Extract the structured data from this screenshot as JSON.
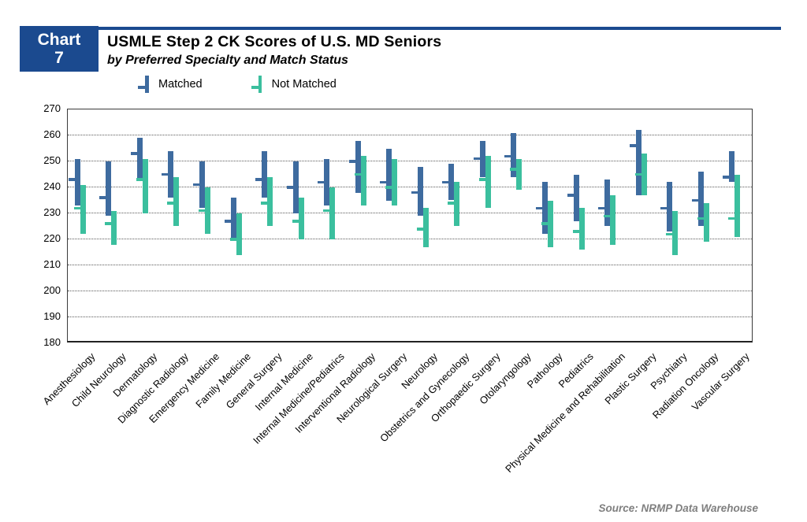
{
  "header": {
    "badge_line1": "Chart",
    "badge_line2": "7",
    "title": "USMLE Step 2 CK Scores of U.S. MD Seniors",
    "subtitle": "by Preferred Specialty and Match Status",
    "badge_color": "#1B4A8F"
  },
  "legend": {
    "matched_label": "Matched",
    "not_matched_label": "Not Matched"
  },
  "source": "Source: NRMP Data Warehouse",
  "colors": {
    "matched": "#3E6B9F",
    "not_matched": "#3BBF9E",
    "rule": "#1B4A8F",
    "grid": "#5a5a5a"
  },
  "chart_data": {
    "type": "range-bar",
    "description": "For each preferred specialty, vertical bars span the central score range (low-high) with a horizontal hash at the mean; one bar for Matched (blue) and one for Not Matched (green).",
    "ylim": [
      180,
      270
    ],
    "ytick_step": 10,
    "grid": "dotted horizontal",
    "legend_position": "top",
    "series_names": [
      "Matched",
      "Not Matched"
    ],
    "specialties": [
      {
        "name": "Anesthesiology",
        "matched": {
          "high": 251,
          "mean": 243,
          "low": 233
        },
        "not_matched": {
          "high": 241,
          "mean": 232,
          "low": 222
        }
      },
      {
        "name": "Child Neurology",
        "matched": {
          "high": 250,
          "mean": 236,
          "low": 229
        },
        "not_matched": {
          "high": 231,
          "mean": 226,
          "low": 218
        }
      },
      {
        "name": "Dermatology",
        "matched": {
          "high": 259,
          "mean": 253,
          "low": 243
        },
        "not_matched": {
          "high": 251,
          "mean": 243,
          "low": 230
        }
      },
      {
        "name": "Diagnostic Radiology",
        "matched": {
          "high": 254,
          "mean": 245,
          "low": 236
        },
        "not_matched": {
          "high": 244,
          "mean": 234,
          "low": 225
        }
      },
      {
        "name": "Emergency Medicine",
        "matched": {
          "high": 250,
          "mean": 241,
          "low": 232
        },
        "not_matched": {
          "high": 240,
          "mean": 231,
          "low": 222
        }
      },
      {
        "name": "Family Medicine",
        "matched": {
          "high": 236,
          "mean": 227,
          "low": 220
        },
        "not_matched": {
          "high": 230,
          "mean": 220,
          "low": 214
        }
      },
      {
        "name": "General Surgery",
        "matched": {
          "high": 254,
          "mean": 243,
          "low": 236
        },
        "not_matched": {
          "high": 244,
          "mean": 234,
          "low": 225
        }
      },
      {
        "name": "Internal Medicine",
        "matched": {
          "high": 250,
          "mean": 240,
          "low": 230
        },
        "not_matched": {
          "high": 236,
          "mean": 227,
          "low": 220
        }
      },
      {
        "name": "Internal Medicine/Pediatrics",
        "matched": {
          "high": 251,
          "mean": 242,
          "low": 233
        },
        "not_matched": {
          "high": 240,
          "mean": 231,
          "low": 220
        }
      },
      {
        "name": "Interventional Radiology",
        "matched": {
          "high": 258,
          "mean": 250,
          "low": 238
        },
        "not_matched": {
          "high": 252,
          "mean": 245,
          "low": 233
        }
      },
      {
        "name": "Neurological Surgery",
        "matched": {
          "high": 255,
          "mean": 242,
          "low": 235
        },
        "not_matched": {
          "high": 251,
          "mean": 240,
          "low": 233
        }
      },
      {
        "name": "Neurology",
        "matched": {
          "high": 248,
          "mean": 238,
          "low": 229
        },
        "not_matched": {
          "high": 232,
          "mean": 224,
          "low": 217
        }
      },
      {
        "name": "Obstetrics and Gynecology",
        "matched": {
          "high": 249,
          "mean": 242,
          "low": 235
        },
        "not_matched": {
          "high": 242,
          "mean": 234,
          "low": 225
        }
      },
      {
        "name": "Orthopaedic Surgery",
        "matched": {
          "high": 258,
          "mean": 251,
          "low": 244
        },
        "not_matched": {
          "high": 252,
          "mean": 243,
          "low": 232
        }
      },
      {
        "name": "Otolaryngology",
        "matched": {
          "high": 261,
          "mean": 252,
          "low": 244
        },
        "not_matched": {
          "high": 251,
          "mean": 247,
          "low": 239
        }
      },
      {
        "name": "Pathology",
        "matched": {
          "high": 242,
          "mean": 232,
          "low": 222
        },
        "not_matched": {
          "high": 235,
          "mean": 226,
          "low": 217
        }
      },
      {
        "name": "Pediatrics",
        "matched": {
          "high": 245,
          "mean": 237,
          "low": 227
        },
        "not_matched": {
          "high": 232,
          "mean": 223,
          "low": 216
        }
      },
      {
        "name": "Physical Medicine and Rehabilitation",
        "matched": {
          "high": 243,
          "mean": 232,
          "low": 225
        },
        "not_matched": {
          "high": 237,
          "mean": 229,
          "low": 218
        }
      },
      {
        "name": "Plastic Surgery",
        "matched": {
          "high": 262,
          "mean": 256,
          "low": 237
        },
        "not_matched": {
          "high": 253,
          "mean": 245,
          "low": 237
        }
      },
      {
        "name": "Psychiatry",
        "matched": {
          "high": 242,
          "mean": 232,
          "low": 223
        },
        "not_matched": {
          "high": 231,
          "mean": 222,
          "low": 214
        }
      },
      {
        "name": "Radiation Oncology",
        "matched": {
          "high": 246,
          "mean": 235,
          "low": 225
        },
        "not_matched": {
          "high": 234,
          "mean": 228,
          "low": 219
        }
      },
      {
        "name": "Vascular Surgery",
        "matched": {
          "high": 254,
          "mean": 244,
          "low": 242
        },
        "not_matched": {
          "high": 245,
          "mean": 228,
          "low": 221
        }
      }
    ]
  }
}
